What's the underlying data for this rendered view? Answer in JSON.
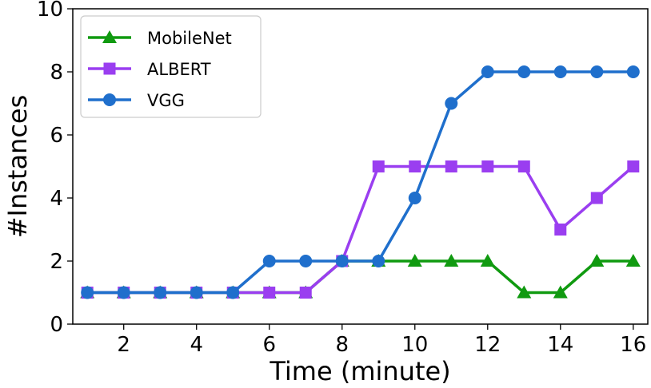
{
  "chart_data": {
    "type": "line",
    "xlabel": "Time (minute)",
    "ylabel": "#Instances",
    "xlim": [
      0.6,
      16.4
    ],
    "ylim": [
      0,
      10
    ],
    "xticks": [
      2,
      4,
      6,
      8,
      10,
      12,
      14,
      16
    ],
    "yticks": [
      0,
      2,
      4,
      6,
      8,
      10
    ],
    "grid": false,
    "legend_position": "top-left",
    "x": [
      1,
      2,
      3,
      4,
      5,
      6,
      7,
      8,
      9,
      10,
      11,
      12,
      13,
      14,
      15,
      16
    ],
    "series": [
      {
        "name": "MobileNet",
        "marker": "triangle",
        "color": "#109a10",
        "values": [
          1,
          1,
          1,
          1,
          1,
          1,
          1,
          2,
          2,
          2,
          2,
          2,
          1,
          1,
          2,
          2
        ]
      },
      {
        "name": "ALBERT",
        "marker": "square",
        "color": "#9a3ef0",
        "values": [
          1,
          1,
          1,
          1,
          1,
          1,
          1,
          2,
          5,
          5,
          5,
          5,
          5,
          3,
          4,
          5
        ]
      },
      {
        "name": "VGG",
        "marker": "circle",
        "color": "#1f6fcc",
        "values": [
          1,
          1,
          1,
          1,
          1,
          2,
          2,
          2,
          2,
          4,
          7,
          8,
          8,
          8,
          8,
          8
        ]
      }
    ]
  }
}
